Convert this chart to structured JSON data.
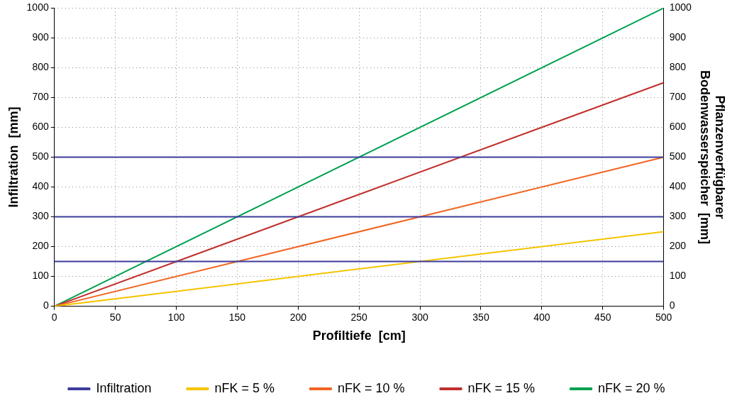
{
  "chart_data": {
    "type": "line",
    "xlabel": "Profiltiefe  [cm]",
    "ylabel": "Infiltration  [mm]",
    "y2label": "Pflanzenverfügbarer\nBodenwasserspeicher  [mm]",
    "x": [
      0,
      500
    ],
    "series": [
      {
        "name": "Infiltration",
        "color": "#3c3c9c",
        "values": [
          150,
          150
        ]
      },
      {
        "color": "#3c3c9c",
        "values": [
          300,
          300
        ]
      },
      {
        "color": "#3c3c9c",
        "values": [
          500,
          500
        ]
      },
      {
        "name": "nFK = 5 %",
        "color": "#f5c400",
        "values": [
          0,
          250
        ]
      },
      {
        "name": "nFK = 10 %",
        "color": "#f26522",
        "values": [
          0,
          500
        ]
      },
      {
        "name": "nFK = 15 %",
        "color": "#c0302c",
        "values": [
          0,
          750
        ]
      },
      {
        "name": "nFK = 20 %",
        "color": "#00a050",
        "values": [
          0,
          1000
        ]
      }
    ],
    "xlim": [
      0,
      500
    ],
    "xticks": [
      0,
      50,
      100,
      150,
      200,
      250,
      300,
      350,
      400,
      450,
      500
    ],
    "ylim": [
      0,
      1000
    ],
    "yticks": [
      0,
      100,
      200,
      300,
      400,
      500,
      600,
      700,
      800,
      900,
      1000
    ],
    "y2lim": [
      0,
      1000
    ],
    "y2ticks": [
      0,
      100,
      200,
      300,
      400,
      500,
      600,
      700,
      800,
      900,
      1000
    ],
    "grid": true,
    "legend": "bottom",
    "marker": "none",
    "line_style": "solid"
  }
}
